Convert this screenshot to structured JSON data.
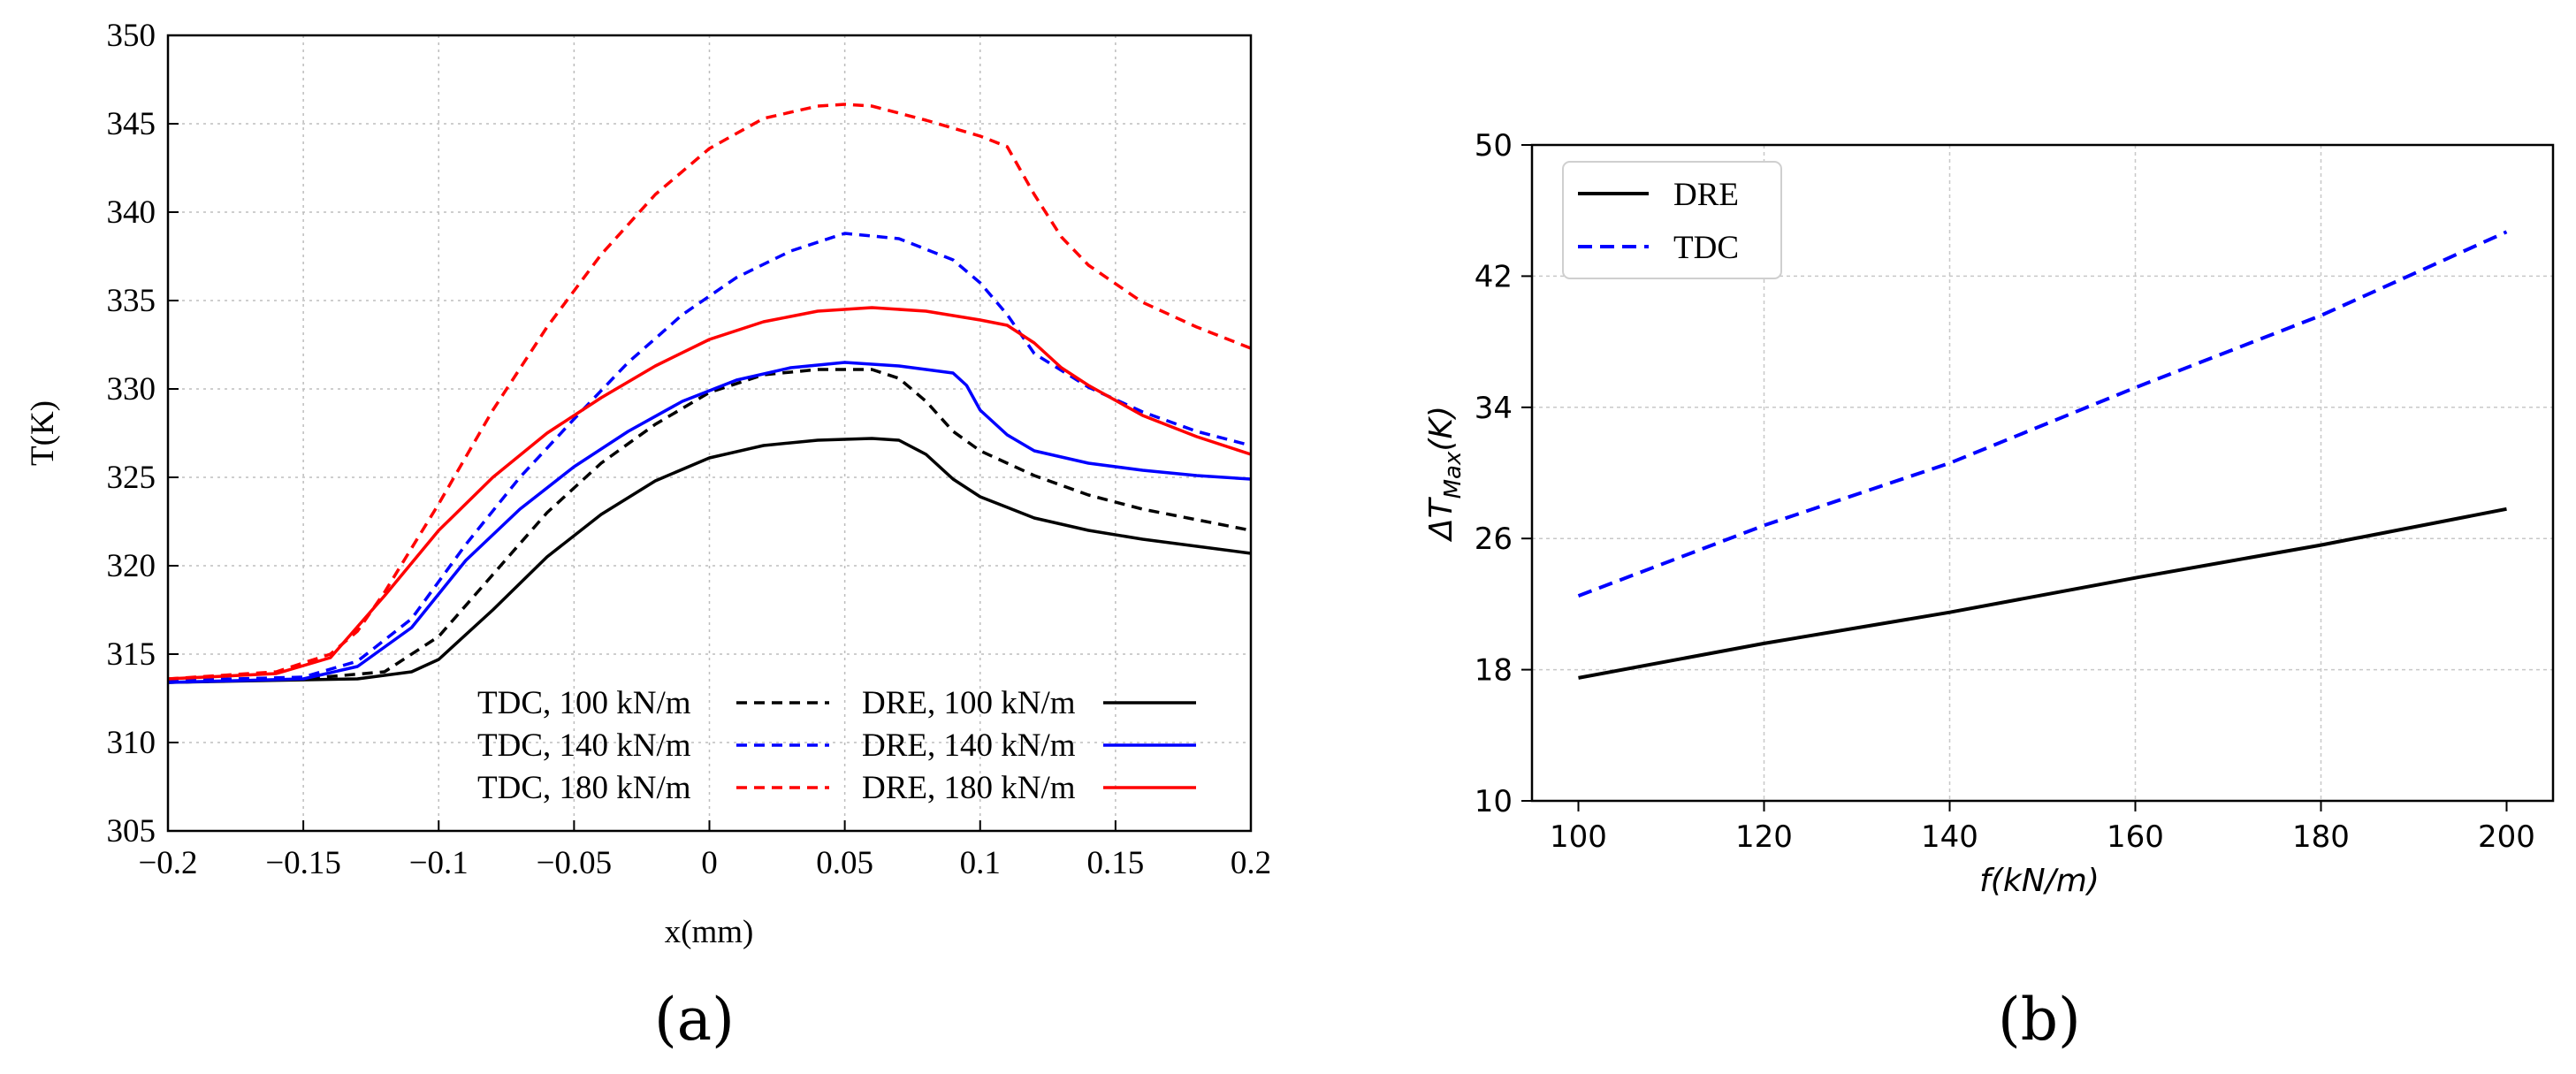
{
  "chart_data": [
    {
      "type": "line",
      "panel_label": "(a)",
      "xlabel": "x(mm)",
      "ylabel": "T(K)",
      "xlim": [
        -0.2,
        0.2
      ],
      "ylim": [
        305,
        350
      ],
      "xticks": [
        -0.2,
        -0.15,
        -0.1,
        -0.05,
        0,
        0.05,
        0.1,
        0.15,
        0.2
      ],
      "xtick_labels": [
        "−0.2",
        "−0.15",
        "−0.1",
        "−0.05",
        "0",
        "0.05",
        "0.1",
        "0.15",
        "0.2"
      ],
      "yticks": [
        305,
        310,
        315,
        320,
        325,
        330,
        335,
        340,
        345,
        350
      ],
      "ytick_labels": [
        "305",
        "310",
        "315",
        "320",
        "325",
        "330",
        "335",
        "340",
        "345",
        "350"
      ],
      "grid": true,
      "legend_position": "lower-right",
      "series": [
        {
          "name": "TDC, 100 kN/m",
          "color": "#000000",
          "dash": "dashed",
          "x": [
            -0.2,
            -0.15,
            -0.12,
            -0.1,
            -0.08,
            -0.06,
            -0.04,
            -0.02,
            0,
            0.02,
            0.04,
            0.06,
            0.07,
            0.08,
            0.09,
            0.1,
            0.12,
            0.14,
            0.16,
            0.18,
            0.2
          ],
          "y": [
            313.4,
            313.6,
            314.0,
            316.0,
            319.5,
            323.0,
            325.8,
            328.0,
            329.8,
            330.8,
            331.1,
            331.1,
            330.6,
            329.3,
            327.6,
            326.5,
            325.1,
            324.0,
            323.2,
            322.6,
            322.0
          ]
        },
        {
          "name": "TDC, 140 kN/m",
          "color": "#0000ff",
          "dash": "dashed",
          "x": [
            -0.2,
            -0.15,
            -0.13,
            -0.11,
            -0.09,
            -0.07,
            -0.05,
            -0.03,
            -0.01,
            0.01,
            0.03,
            0.05,
            0.07,
            0.09,
            0.1,
            0.11,
            0.12,
            0.14,
            0.16,
            0.18,
            0.2
          ],
          "y": [
            313.5,
            313.7,
            314.6,
            317.0,
            321.2,
            325.0,
            328.3,
            331.5,
            334.2,
            336.3,
            337.8,
            338.8,
            338.5,
            337.3,
            336.0,
            334.2,
            332.0,
            330.1,
            328.7,
            327.6,
            326.8
          ]
        },
        {
          "name": "TDC, 180 kN/m",
          "color": "#ff0000",
          "dash": "dashed",
          "x": [
            -0.2,
            -0.16,
            -0.14,
            -0.13,
            -0.12,
            -0.1,
            -0.08,
            -0.06,
            -0.04,
            -0.02,
            0,
            0.02,
            0.04,
            0.05,
            0.06,
            0.08,
            0.1,
            0.11,
            0.12,
            0.13,
            0.14,
            0.16,
            0.18,
            0.2
          ],
          "y": [
            313.6,
            314.0,
            315.0,
            316.3,
            318.5,
            323.5,
            328.8,
            333.5,
            337.6,
            341.0,
            343.6,
            345.3,
            346.0,
            346.1,
            346.0,
            345.2,
            344.3,
            343.7,
            341.0,
            338.6,
            337.0,
            334.9,
            333.5,
            332.3
          ]
        },
        {
          "name": "DRE, 100 kN/m",
          "color": "#000000",
          "dash": "solid",
          "x": [
            -0.2,
            -0.13,
            -0.11,
            -0.1,
            -0.08,
            -0.06,
            -0.04,
            -0.02,
            0,
            0.02,
            0.04,
            0.06,
            0.07,
            0.08,
            0.09,
            0.1,
            0.12,
            0.14,
            0.16,
            0.18,
            0.2
          ],
          "y": [
            313.4,
            313.6,
            314.0,
            314.7,
            317.5,
            320.5,
            322.9,
            324.8,
            326.1,
            326.8,
            327.1,
            327.2,
            327.1,
            326.3,
            324.9,
            323.9,
            322.7,
            322.0,
            321.5,
            321.1,
            320.7
          ]
        },
        {
          "name": "DRE, 140 kN/m",
          "color": "#0000ff",
          "dash": "solid",
          "x": [
            -0.2,
            -0.15,
            -0.13,
            -0.11,
            -0.09,
            -0.07,
            -0.05,
            -0.03,
            -0.01,
            0.01,
            0.03,
            0.05,
            0.07,
            0.09,
            0.095,
            0.1,
            0.11,
            0.12,
            0.14,
            0.16,
            0.18,
            0.2
          ],
          "y": [
            313.4,
            313.6,
            314.3,
            316.5,
            320.3,
            323.2,
            325.6,
            327.6,
            329.3,
            330.5,
            331.2,
            331.5,
            331.3,
            330.9,
            330.2,
            328.8,
            327.4,
            326.5,
            325.8,
            325.4,
            325.1,
            324.9
          ]
        },
        {
          "name": "DRE, 180 kN/m",
          "color": "#ff0000",
          "dash": "solid",
          "x": [
            -0.2,
            -0.16,
            -0.14,
            -0.12,
            -0.1,
            -0.08,
            -0.06,
            -0.04,
            -0.02,
            0,
            0.02,
            0.04,
            0.06,
            0.08,
            0.1,
            0.11,
            0.12,
            0.13,
            0.14,
            0.16,
            0.18,
            0.2
          ],
          "y": [
            313.6,
            313.9,
            314.8,
            318.3,
            322.0,
            325.0,
            327.5,
            329.5,
            331.3,
            332.8,
            333.8,
            334.4,
            334.6,
            334.4,
            333.9,
            333.6,
            332.6,
            331.2,
            330.2,
            328.5,
            327.3,
            326.3
          ]
        }
      ]
    },
    {
      "type": "line",
      "panel_label": "(b)",
      "xlabel": "f(kN/m)",
      "ylabel": "ΔT_Max(K)",
      "ylabel_parts": {
        "delta": "ΔT",
        "sub": "Max",
        "tail": "(K)"
      },
      "xlim": [
        95,
        205
      ],
      "ylim": [
        10,
        50
      ],
      "xticks": [
        100,
        120,
        140,
        160,
        180,
        200
      ],
      "xtick_labels": [
        "100",
        "120",
        "140",
        "160",
        "180",
        "200"
      ],
      "yticks": [
        10,
        18,
        26,
        34,
        42,
        50
      ],
      "ytick_labels": [
        "10",
        "18",
        "26",
        "34",
        "42",
        "50"
      ],
      "grid": true,
      "legend_position": "top-left",
      "series": [
        {
          "name": "DRE",
          "color": "#000000",
          "dash": "solid",
          "x": [
            100,
            120,
            140,
            160,
            180,
            200
          ],
          "y": [
            17.5,
            19.6,
            21.5,
            23.6,
            25.6,
            27.8
          ]
        },
        {
          "name": "TDC",
          "color": "#0000ff",
          "dash": "dashed",
          "x": [
            100,
            120,
            140,
            160,
            180,
            200
          ],
          "y": [
            22.5,
            26.8,
            30.6,
            35.2,
            39.6,
            44.7
          ]
        }
      ]
    }
  ]
}
